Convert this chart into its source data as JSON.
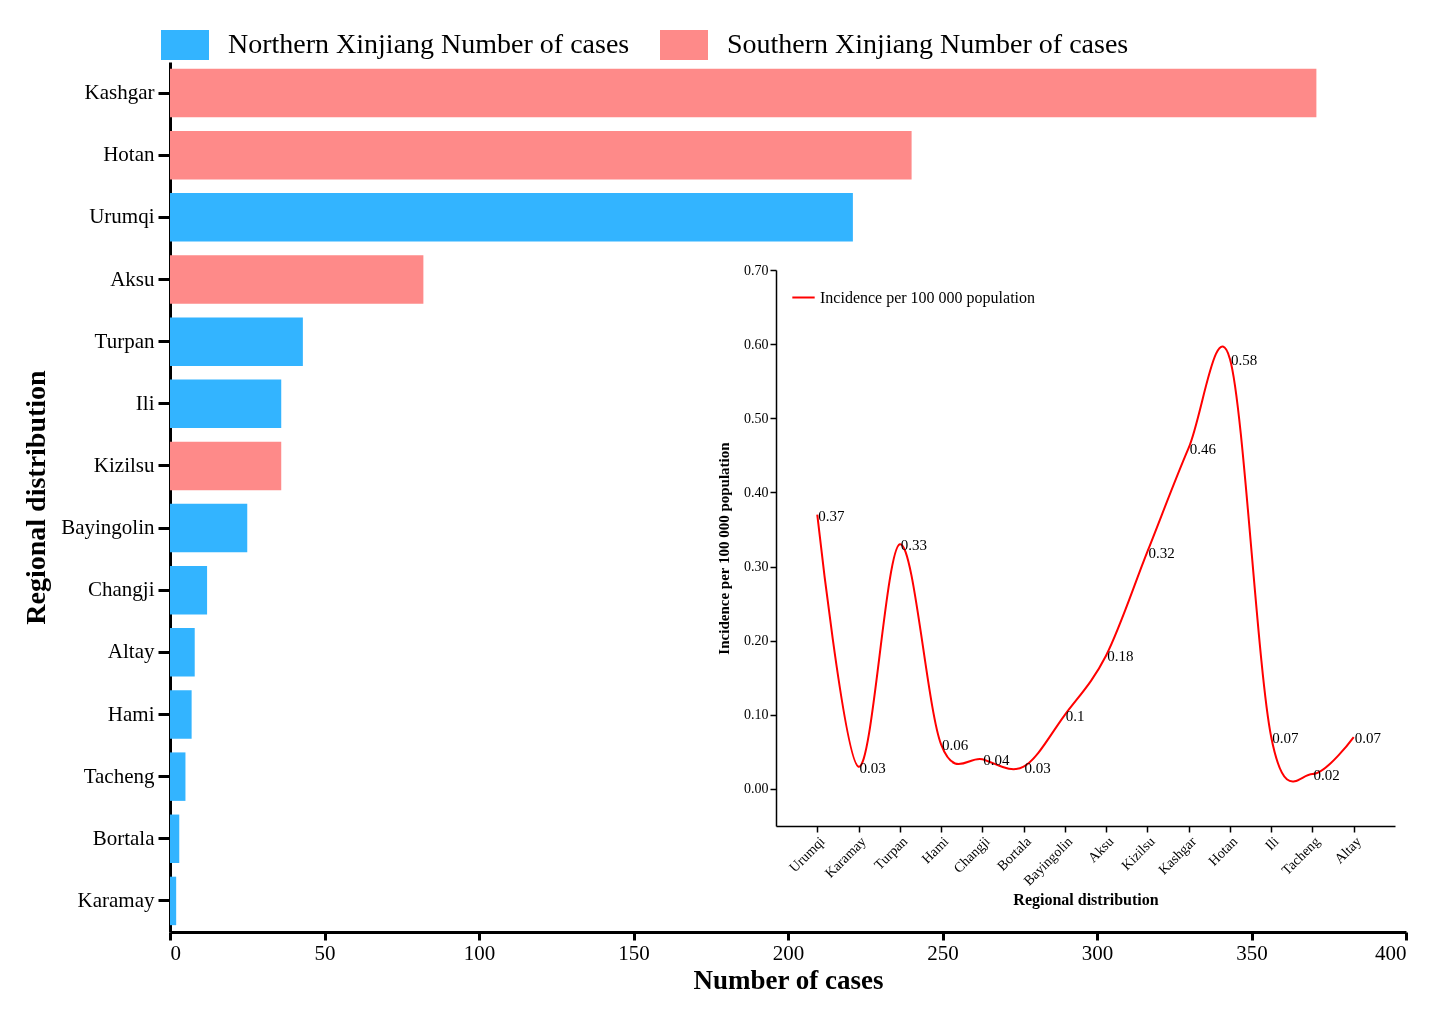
{
  "chart_data": [
    {
      "type": "bar",
      "orientation": "horizontal",
      "categories": [
        "Kashgar",
        "Hotan",
        "Urumqi",
        "Aksu",
        "Turpan",
        "Ili",
        "Kizilsu",
        "Bayingolin",
        "Changji",
        "Altay",
        "Hami",
        "Tacheng",
        "Bortala",
        "Karamay"
      ],
      "series": [
        {
          "name": "Northern Xinjiang Number of cases",
          "color": "#33b4ff",
          "values": [
            null,
            null,
            221,
            null,
            43,
            36,
            null,
            25,
            12,
            8,
            7,
            5,
            3,
            2
          ]
        },
        {
          "name": "Southern Xinjiang Number of cases",
          "color": "#fe8a89",
          "values": [
            371,
            240,
            null,
            82,
            null,
            null,
            36,
            null,
            null,
            null,
            null,
            null,
            null,
            null
          ]
        }
      ],
      "xlabel": "Number of cases",
      "ylabel": "Regional distribution",
      "xlim": [
        0,
        400
      ],
      "xticks": [
        0,
        50,
        100,
        150,
        200,
        250,
        300,
        350,
        400
      ],
      "legend": "top",
      "grid": false
    },
    {
      "type": "line",
      "categories": [
        "Urumqi",
        "Karamay",
        "Turpan",
        "Hami",
        "Changji",
        "Bortala",
        "Bayingolin",
        "Aksu",
        "Kizilsu",
        "Kashgar",
        "Hotan",
        "Ili",
        "Tacheng",
        "Altay"
      ],
      "series": [
        {
          "name": "Incidence per 100 000 population",
          "color": "#ff0000",
          "values": [
            0.37,
            0.03,
            0.33,
            0.06,
            0.04,
            0.03,
            0.1,
            0.18,
            0.32,
            0.46,
            0.58,
            0.07,
            0.02,
            0.07
          ]
        }
      ],
      "xlabel": "Regional distribution",
      "ylabel": "Incidence per 100 000 population",
      "ylim": [
        -0.05,
        0.7
      ],
      "yticks": [
        {
          "value": 0,
          "label": "0.00"
        },
        {
          "value": 0.1,
          "label": "0.10"
        },
        {
          "value": 0.2,
          "label": "0.20"
        },
        {
          "value": 0.3,
          "label": "0.30"
        },
        {
          "value": 0.4,
          "label": "0.40"
        },
        {
          "value": 0.5,
          "label": "0.50"
        },
        {
          "value": 0.6,
          "label": "0.60"
        },
        {
          "value": 0.7,
          "label": "0.70"
        }
      ],
      "data_labels": true,
      "legend": "top left",
      "grid": false
    }
  ]
}
